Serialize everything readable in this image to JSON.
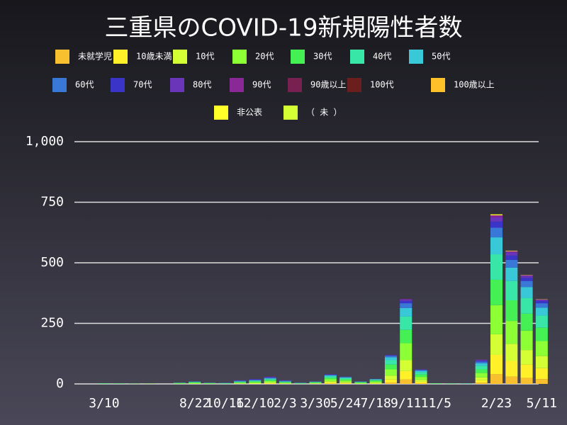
{
  "chart_data": {
    "type": "stacked-bar",
    "title": "三重県のCOVID-19新規陽性者数",
    "categories": [
      null,
      "3/10",
      null,
      null,
      null,
      null,
      null,
      "8/22",
      null,
      "10/16",
      null,
      "12/10",
      null,
      "2/3",
      null,
      "3/30",
      null,
      "5/24",
      null,
      "7/18",
      null,
      "9/11",
      null,
      "11/5",
      null,
      null,
      null,
      "2/23",
      null,
      null,
      "5/11"
    ],
    "ylim": [
      0,
      1000
    ],
    "yticks": [
      0,
      250,
      500,
      750,
      {
        "value": 1000,
        "label": "1,000"
      }
    ],
    "grid": true,
    "series": [
      {
        "name": "未就学児",
        "color": "#f8bf2e",
        "values": [
          0,
          0,
          0,
          0,
          0,
          0,
          0,
          0,
          0,
          0,
          0,
          0,
          1,
          0,
          0,
          0,
          2,
          1,
          0,
          0,
          6,
          18,
          3,
          0,
          0,
          0,
          5,
          40,
          30,
          25,
          20
        ]
      },
      {
        "name": "10歳未満",
        "color": "#fff02a",
        "values": [
          0,
          0,
          0,
          0,
          0,
          0,
          0,
          0,
          0,
          0,
          1,
          1,
          2,
          1,
          0,
          1,
          4,
          3,
          0,
          2,
          12,
          35,
          6,
          0,
          0,
          0,
          10,
          80,
          65,
          55,
          45
        ]
      },
      {
        "name": "10代",
        "color": "#d4ff35",
        "values": [
          0,
          0,
          0,
          0,
          0,
          0,
          0,
          1,
          0,
          0,
          1,
          2,
          3,
          1,
          0,
          1,
          5,
          4,
          1,
          3,
          16,
          45,
          8,
          0,
          0,
          0,
          12,
          85,
          70,
          60,
          50
        ]
      },
      {
        "name": "20代",
        "color": "#8cff35",
        "values": [
          0,
          1,
          1,
          0,
          1,
          0,
          2,
          3,
          2,
          1,
          3,
          4,
          6,
          3,
          1,
          2,
          8,
          6,
          3,
          5,
          26,
          70,
          12,
          1,
          1,
          0,
          18,
          120,
          95,
          80,
          62
        ]
      },
      {
        "name": "30代",
        "color": "#45f055",
        "values": [
          0,
          1,
          0,
          1,
          0,
          0,
          1,
          2,
          1,
          1,
          2,
          3,
          4,
          2,
          1,
          2,
          6,
          5,
          2,
          4,
          20,
          55,
          10,
          1,
          0,
          1,
          15,
          105,
          85,
          70,
          55
        ]
      },
      {
        "name": "40代",
        "color": "#38e6a8",
        "values": [
          0,
          0,
          1,
          0,
          0,
          0,
          1,
          2,
          1,
          1,
          2,
          3,
          4,
          2,
          1,
          2,
          6,
          5,
          2,
          3,
          18,
          55,
          9,
          1,
          1,
          0,
          15,
          105,
          80,
          65,
          50
        ]
      },
      {
        "name": "50代",
        "color": "#38c8d8",
        "values": [
          0,
          1,
          0,
          0,
          0,
          0,
          1,
          1,
          0,
          1,
          2,
          2,
          3,
          2,
          1,
          1,
          4,
          3,
          1,
          2,
          12,
          35,
          6,
          0,
          0,
          1,
          10,
          70,
          55,
          45,
          33
        ]
      },
      {
        "name": "60代",
        "color": "#3a78d8",
        "values": [
          0,
          0,
          0,
          0,
          0,
          0,
          0,
          1,
          1,
          0,
          2,
          2,
          3,
          2,
          1,
          1,
          2,
          2,
          1,
          1,
          6,
          20,
          3,
          0,
          0,
          0,
          7,
          40,
          32,
          25,
          18
        ]
      },
      {
        "name": "70代",
        "color": "#3a35c8",
        "values": [
          0,
          0,
          0,
          0,
          0,
          0,
          0,
          0,
          0,
          1,
          1,
          2,
          2,
          1,
          0,
          0,
          2,
          1,
          0,
          0,
          3,
          10,
          2,
          0,
          0,
          0,
          4,
          25,
          18,
          13,
          9
        ]
      },
      {
        "name": "80代",
        "color": "#6a35b8",
        "values": [
          0,
          0,
          0,
          0,
          0,
          0,
          0,
          0,
          0,
          0,
          1,
          1,
          1,
          1,
          0,
          0,
          1,
          0,
          0,
          0,
          1,
          5,
          1,
          0,
          0,
          0,
          3,
          18,
          13,
          8,
          5
        ]
      },
      {
        "name": "90代",
        "color": "#8a2898",
        "values": [
          0,
          0,
          0,
          0,
          0,
          0,
          0,
          0,
          0,
          0,
          0,
          0,
          1,
          0,
          0,
          0,
          0,
          0,
          0,
          0,
          0,
          2,
          0,
          0,
          0,
          0,
          1,
          8,
          5,
          3,
          2
        ]
      },
      {
        "name": "90歳以上",
        "color": "#782050",
        "values": [
          0,
          0,
          0,
          0,
          0,
          0,
          0,
          0,
          0,
          0,
          0,
          0,
          0,
          0,
          0,
          0,
          0,
          0,
          0,
          0,
          0,
          0,
          0,
          0,
          0,
          0,
          0,
          0,
          0,
          0,
          0
        ]
      },
      {
        "name": "100代",
        "color": "#6a1e1e",
        "values": [
          0,
          0,
          0,
          0,
          0,
          0,
          0,
          0,
          0,
          0,
          0,
          0,
          0,
          0,
          0,
          0,
          0,
          0,
          0,
          0,
          0,
          0,
          0,
          0,
          0,
          0,
          0,
          0,
          0,
          0,
          0
        ]
      },
      {
        "name": "100歳以上",
        "color": "#ffc02a",
        "values": [
          0,
          0,
          0,
          0,
          0,
          0,
          0,
          0,
          0,
          0,
          0,
          0,
          0,
          0,
          0,
          0,
          0,
          0,
          0,
          0,
          0,
          0,
          0,
          0,
          0,
          0,
          0,
          0,
          0,
          0,
          0
        ]
      },
      {
        "name": "非公表",
        "color": "#ffff2a",
        "values": [
          0,
          0,
          0,
          0,
          0,
          0,
          0,
          0,
          0,
          0,
          0,
          0,
          0,
          0,
          0,
          0,
          0,
          0,
          0,
          0,
          0,
          0,
          0,
          0,
          0,
          0,
          0,
          4,
          2,
          1,
          1
        ]
      },
      {
        "name": "（ 未 ）",
        "color": "#d4ff35",
        "values": [
          0,
          0,
          0,
          0,
          0,
          0,
          0,
          0,
          0,
          0,
          0,
          0,
          0,
          0,
          0,
          0,
          0,
          0,
          0,
          0,
          0,
          0,
          0,
          0,
          0,
          0,
          0,
          0,
          0,
          0,
          0
        ]
      }
    ]
  }
}
